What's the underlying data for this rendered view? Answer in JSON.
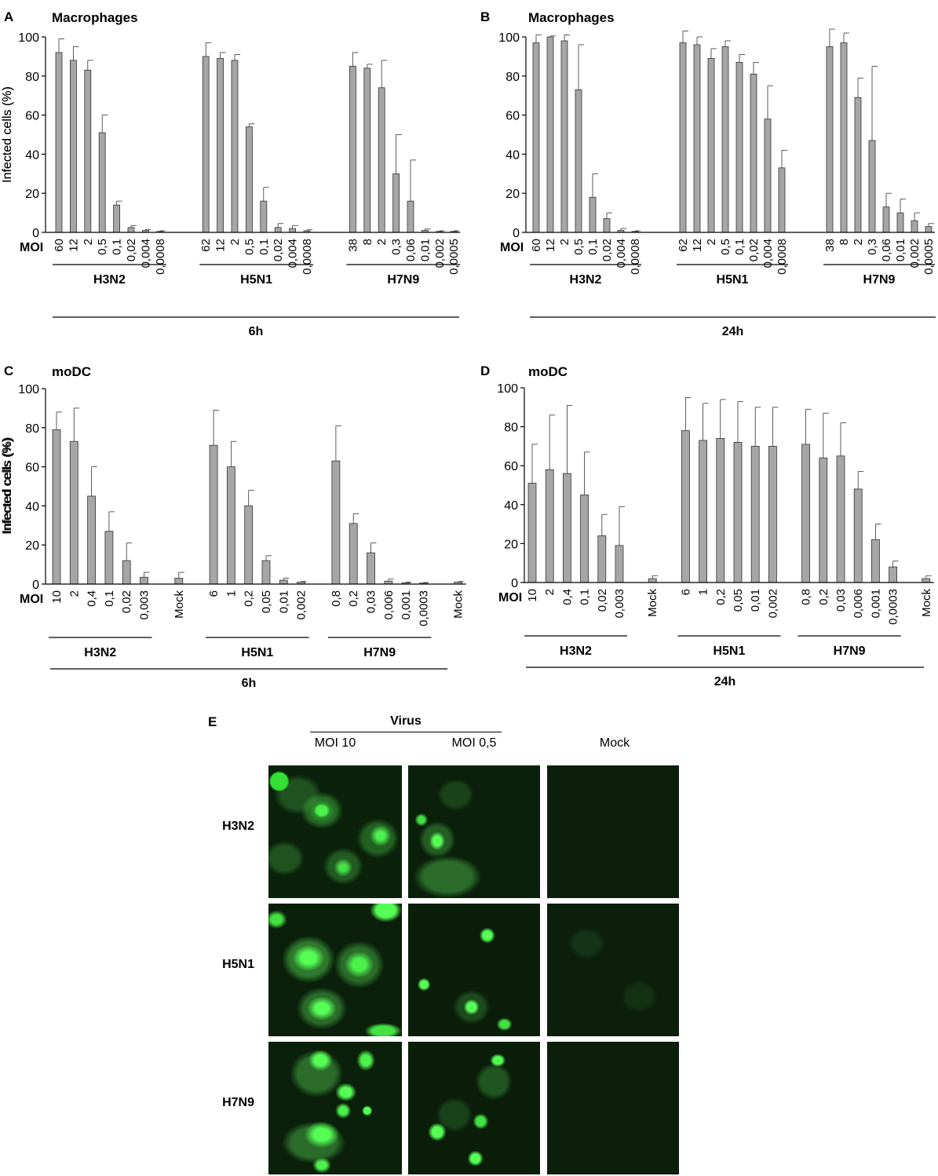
{
  "chart_data": [
    {
      "panel": "A",
      "title": "Macrophages",
      "type": "bar",
      "ylabel": "Infected cells (%)",
      "ylim": [
        0,
        100
      ],
      "yticks": [
        0,
        20,
        40,
        60,
        80,
        100
      ],
      "moi_label": "MOI",
      "time": "6h",
      "groups": [
        {
          "name": "H3N2",
          "categories": [
            "60",
            "12",
            "2",
            "0,5",
            "0,1",
            "0,02",
            "0,004",
            "0,0008"
          ],
          "values": [
            92,
            88,
            83,
            51,
            14,
            2.5,
            1,
            0.5
          ],
          "errors": [
            7,
            7,
            5,
            9,
            2,
            1,
            0.5,
            0.3
          ]
        },
        {
          "name": "H5N1",
          "categories": [
            "62",
            "12",
            "2",
            "0,5",
            "0,1",
            "0,02",
            "0,004",
            "0,0008"
          ],
          "values": [
            90,
            89,
            88,
            54,
            16,
            2.5,
            2,
            0.8
          ],
          "errors": [
            7,
            3,
            3,
            1.5,
            7,
            2,
            1.5,
            0.5
          ]
        },
        {
          "name": "H7N9",
          "categories": [
            "38",
            "8",
            "2",
            "0,3",
            "0,06",
            "0,01",
            "0,002",
            "0,0005"
          ],
          "values": [
            85,
            84,
            74,
            30,
            16,
            1,
            0.5,
            0.5
          ],
          "errors": [
            7,
            2,
            14,
            20,
            21,
            0.7,
            0.3,
            0.3
          ]
        }
      ]
    },
    {
      "panel": "B",
      "title": "Macrophages",
      "type": "bar",
      "ylabel": "Infected cells (%)",
      "ylim": [
        0,
        100
      ],
      "yticks": [
        0,
        20,
        40,
        60,
        80,
        100
      ],
      "moi_label": "MOI",
      "time": "24h",
      "groups": [
        {
          "name": "H3N2",
          "categories": [
            "60",
            "12",
            "2",
            "0,5",
            "0,1",
            "0,02",
            "0,004",
            "0,0008"
          ],
          "values": [
            97,
            100,
            98,
            73,
            18,
            7,
            1,
            0.5
          ],
          "errors": [
            4,
            0.5,
            3,
            23,
            12,
            3,
            1,
            0.3
          ]
        },
        {
          "name": "H5N1",
          "categories": [
            "62",
            "12",
            "2",
            "0,5",
            "0,1",
            "0,02",
            "0,004",
            "0,0008"
          ],
          "values": [
            97,
            96,
            89,
            95,
            87,
            81,
            58,
            33
          ],
          "errors": [
            6,
            4,
            5,
            3,
            4,
            6,
            17,
            9
          ]
        },
        {
          "name": "H7N9",
          "categories": [
            "38",
            "8",
            "2",
            "0,3",
            "0,06",
            "0,01",
            "0,002",
            "0,0005"
          ],
          "values": [
            95,
            97,
            69,
            47,
            13,
            10,
            6,
            3
          ],
          "errors": [
            9,
            5,
            10,
            38,
            7,
            7,
            4,
            1.5
          ]
        }
      ]
    },
    {
      "panel": "C",
      "title": "moDC",
      "type": "bar",
      "ylabel": "Infected cells (%)",
      "ylim": [
        0,
        100
      ],
      "yticks": [
        0,
        20,
        40,
        60,
        80,
        100
      ],
      "moi_label": "MOI",
      "time": "6h",
      "groups": [
        {
          "name": "H3N2",
          "categories": [
            "10",
            "2",
            "0,4",
            "0,1",
            "0,02",
            "0,003"
          ],
          "values": [
            79,
            73,
            45,
            27,
            12,
            3.5
          ],
          "errors": [
            9,
            17,
            15,
            10,
            9,
            2.5
          ]
        },
        {
          "name": "",
          "categories": [
            "Mock"
          ],
          "values": [
            3
          ],
          "errors": [
            3
          ]
        },
        {
          "name": "H5N1",
          "categories": [
            "6",
            "1",
            "0,2",
            "0,05",
            "0,01",
            "0,002"
          ],
          "values": [
            71,
            60,
            40,
            12,
            2,
            1
          ],
          "errors": [
            18,
            13,
            8,
            2.5,
            1,
            0.3
          ]
        },
        {
          "name": "H7N9",
          "categories": [
            "0,8",
            "0,2",
            "0,03",
            "0,006",
            "0,001",
            "0,0003"
          ],
          "values": [
            63,
            31,
            16,
            1.5,
            0.7,
            0.5
          ],
          "errors": [
            18,
            5,
            5,
            1,
            0.3,
            0.3
          ]
        },
        {
          "name": "",
          "categories": [
            "Mock"
          ],
          "values": [
            1
          ],
          "errors": [
            0.3
          ]
        }
      ]
    },
    {
      "panel": "D",
      "title": "moDC",
      "type": "bar",
      "ylabel": "Infected cells (%)",
      "ylim": [
        0,
        100
      ],
      "yticks": [
        0,
        20,
        40,
        60,
        80,
        100
      ],
      "moi_label": "MOI",
      "time": "24h",
      "groups": [
        {
          "name": "H3N2",
          "categories": [
            "10",
            "2",
            "0,4",
            "0,1",
            "0,02",
            "0,003"
          ],
          "values": [
            51,
            58,
            56,
            45,
            24,
            19
          ],
          "errors": [
            20,
            28,
            35,
            22,
            11,
            20
          ]
        },
        {
          "name": "",
          "categories": [
            "Mock"
          ],
          "values": [
            2
          ],
          "errors": [
            1.5
          ]
        },
        {
          "name": "H5N1",
          "categories": [
            "6",
            "1",
            "0,2",
            "0,05",
            "0,01",
            "0,002"
          ],
          "values": [
            78,
            73,
            74,
            72,
            70,
            70
          ],
          "errors": [
            17,
            19,
            20,
            21,
            20,
            20
          ]
        },
        {
          "name": "H7N9",
          "categories": [
            "0,8",
            "0,2",
            "0,03",
            "0,006",
            "0,001",
            "0,0003"
          ],
          "values": [
            71,
            64,
            65,
            48,
            22,
            8
          ],
          "errors": [
            18,
            23,
            17,
            9,
            8,
            3
          ]
        },
        {
          "name": "",
          "categories": [
            "Mock"
          ],
          "values": [
            2
          ],
          "errors": [
            1.5
          ]
        }
      ]
    }
  ],
  "panel_e": {
    "letter": "E",
    "header": "Virus",
    "columns": [
      "MOI 10",
      "MOI 0,5",
      "Mock"
    ],
    "rows": [
      "H3N2",
      "H5N1",
      "H7N9"
    ]
  }
}
